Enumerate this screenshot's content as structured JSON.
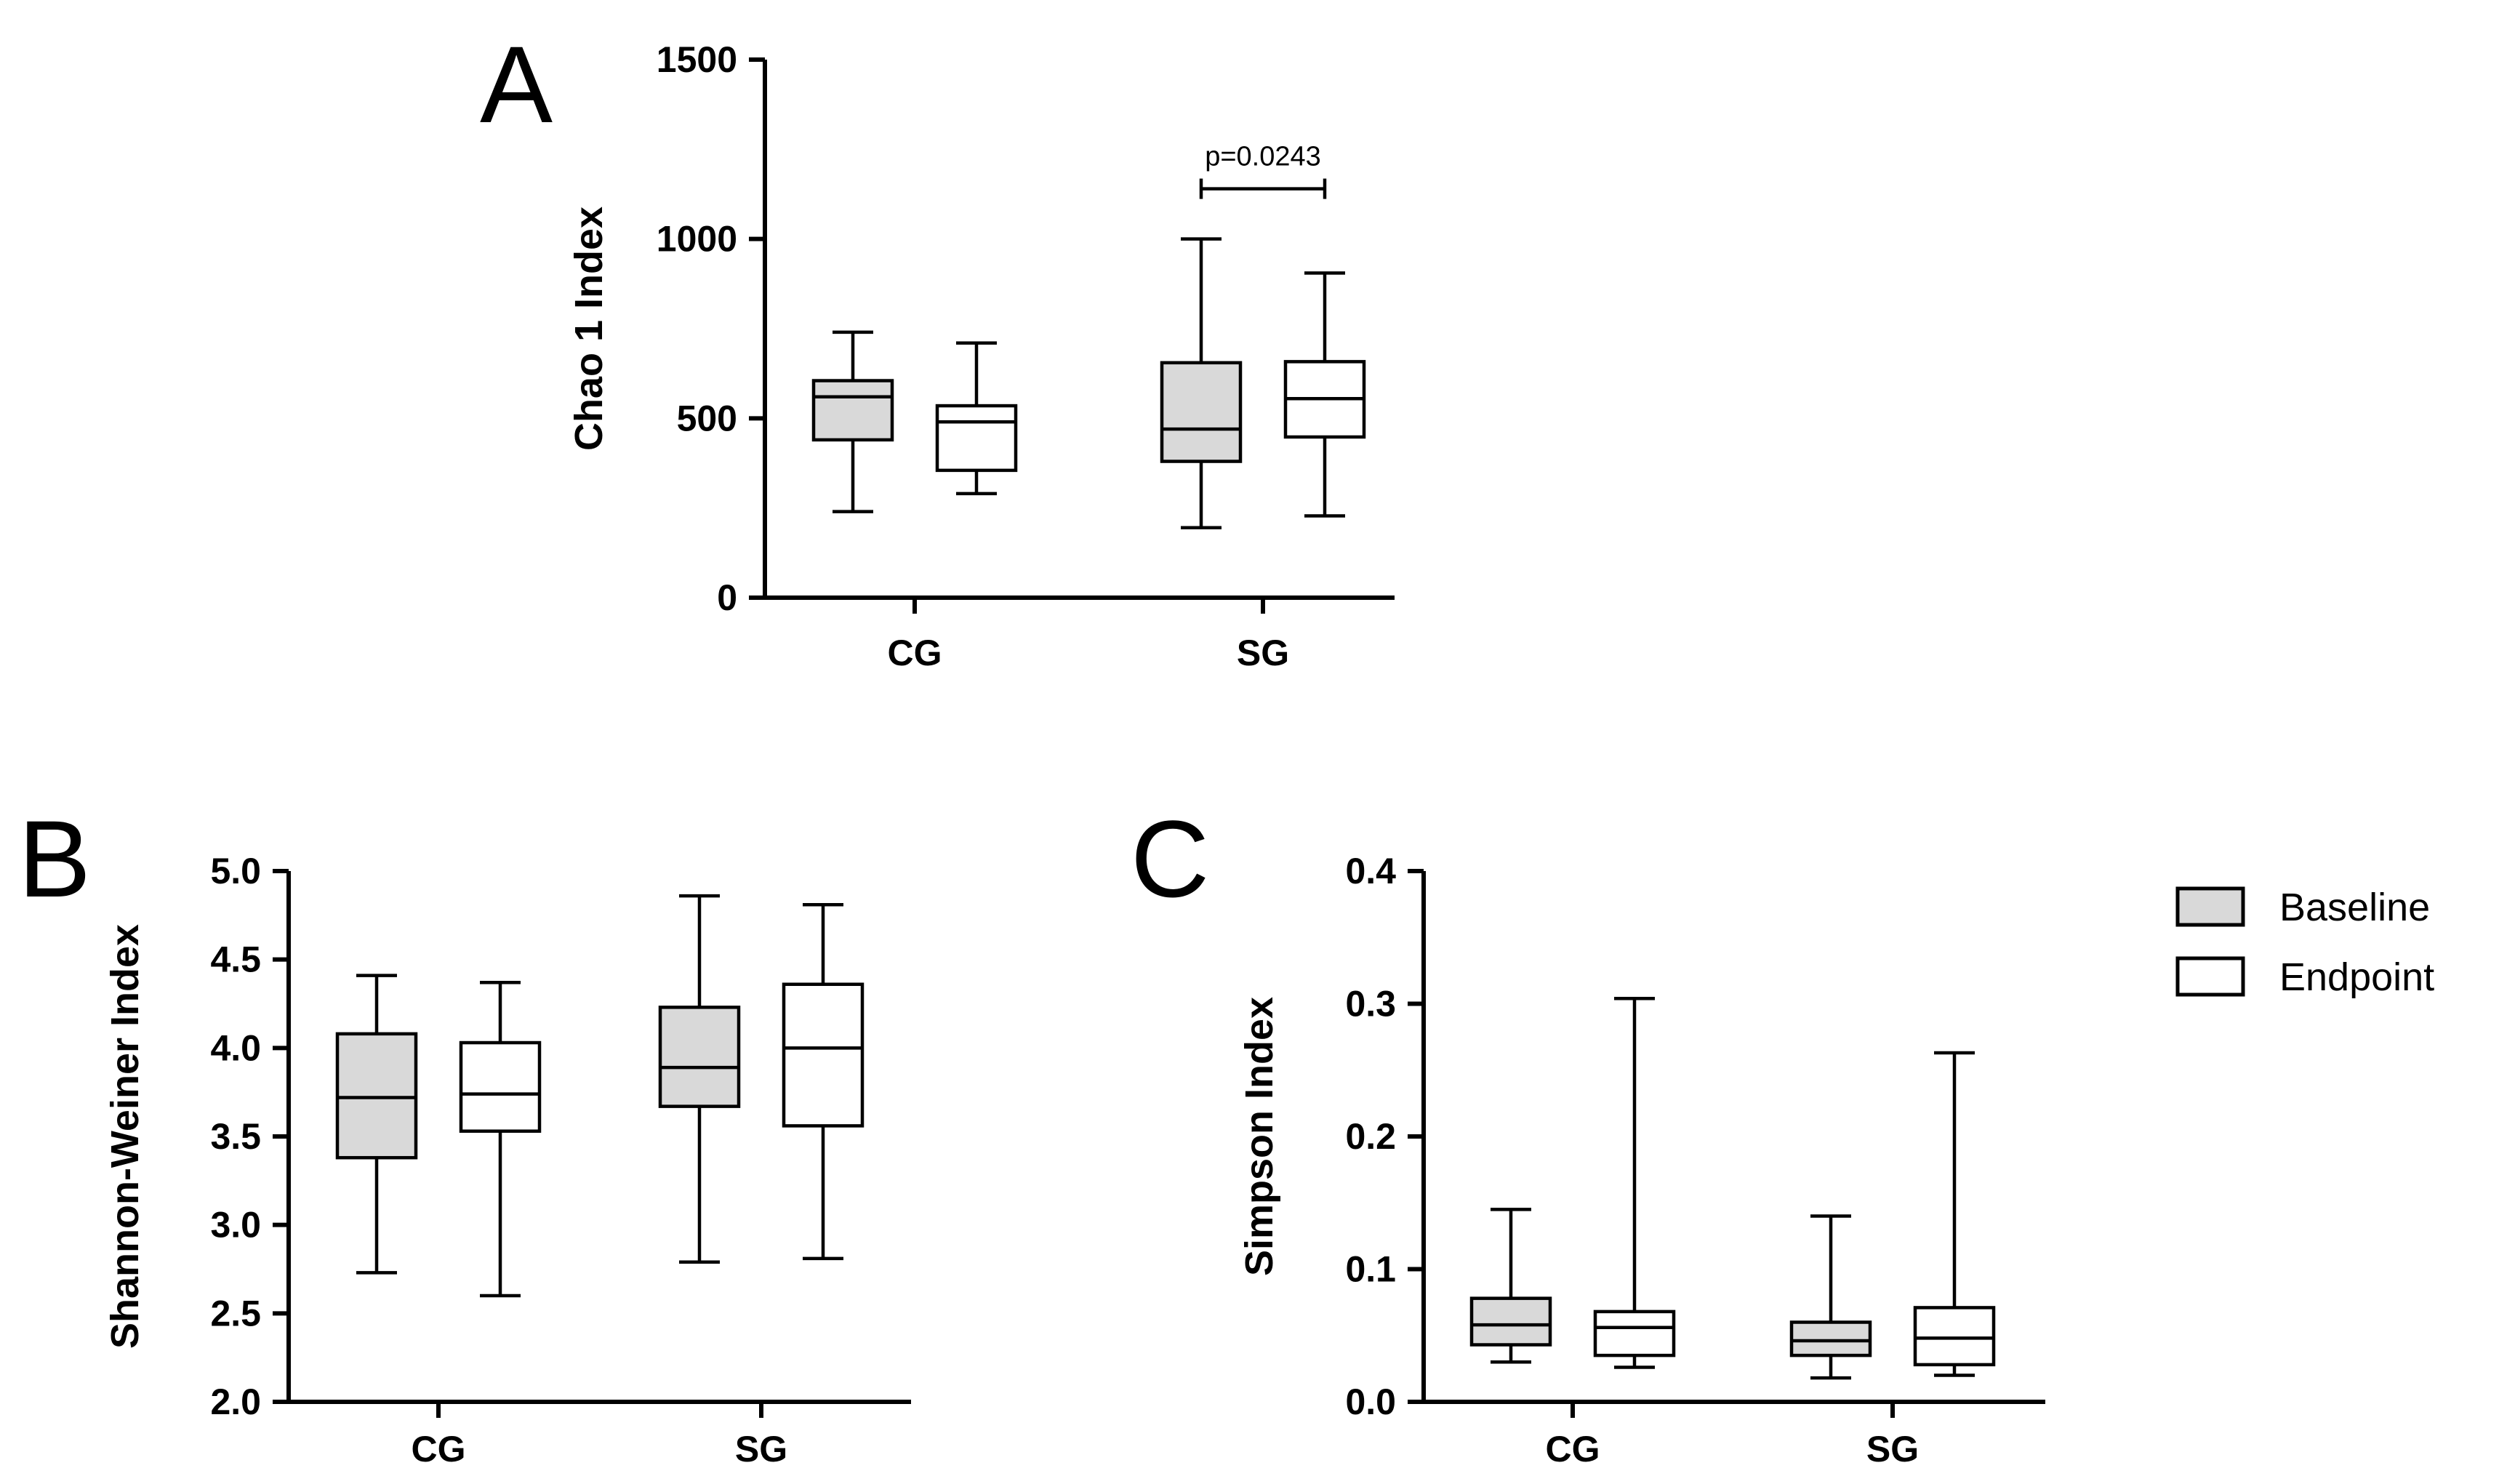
{
  "colors": {
    "baseline": "#d9d9d9",
    "endpoint": "#ffffff",
    "line": "#000000"
  },
  "legend": [
    {
      "label": "Baseline",
      "color": "#d9d9d9"
    },
    {
      "label": "Endpoint",
      "color": "#ffffff"
    }
  ],
  "chart_data": [
    {
      "panel": "A",
      "type": "box",
      "title": "",
      "ylabel": "Chao 1 Index",
      "ylim": [
        0,
        1500
      ],
      "yticks": [
        0,
        500,
        1000,
        1500
      ],
      "ytick_labels": [
        "0",
        "500",
        "1000",
        "1500"
      ],
      "categories": [
        "CG",
        "SG"
      ],
      "series": [
        {
          "name": "Baseline",
          "boxes": [
            {
              "min": 240,
              "q1": 440,
              "median": 560,
              "q3": 605,
              "max": 740
            },
            {
              "min": 195,
              "q1": 380,
              "median": 470,
              "q3": 655,
              "max": 1000
            }
          ]
        },
        {
          "name": "Endpoint",
          "boxes": [
            {
              "min": 290,
              "q1": 355,
              "median": 490,
              "q3": 535,
              "max": 710
            },
            {
              "min": 228,
              "q1": 448,
              "median": 555,
              "q3": 658,
              "max": 905
            }
          ]
        }
      ],
      "annotations": [
        {
          "text": "p=0.0243",
          "category": "SG",
          "y": 1140
        }
      ]
    },
    {
      "panel": "B",
      "type": "box",
      "title": "",
      "ylabel": "Shannon-Weiner Index",
      "ylim": [
        2.0,
        5.0
      ],
      "yticks": [
        2.0,
        2.5,
        3.0,
        3.5,
        4.0,
        4.5,
        5.0
      ],
      "ytick_labels": [
        "2.0",
        "2.5",
        "3.0",
        "3.5",
        "4.0",
        "4.5",
        "5.0"
      ],
      "categories": [
        "CG",
        "SG"
      ],
      "series": [
        {
          "name": "Baseline",
          "boxes": [
            {
              "min": 2.73,
              "q1": 3.38,
              "median": 3.72,
              "q3": 4.08,
              "max": 4.41
            },
            {
              "min": 2.79,
              "q1": 3.67,
              "median": 3.89,
              "q3": 4.23,
              "max": 4.86
            }
          ]
        },
        {
          "name": "Endpoint",
          "boxes": [
            {
              "min": 2.6,
              "q1": 3.53,
              "median": 3.74,
              "q3": 4.03,
              "max": 4.37
            },
            {
              "min": 2.81,
              "q1": 3.56,
              "median": 4.0,
              "q3": 4.36,
              "max": 4.81
            }
          ]
        }
      ],
      "annotations": []
    },
    {
      "panel": "C",
      "type": "box",
      "title": "",
      "ylabel": "Simpson Index",
      "ylim": [
        0.0,
        0.4
      ],
      "yticks": [
        0.0,
        0.1,
        0.2,
        0.3,
        0.4
      ],
      "ytick_labels": [
        "0.0",
        "0.1",
        "0.2",
        "0.3",
        "0.4"
      ],
      "categories": [
        "CG",
        "SG"
      ],
      "series": [
        {
          "name": "Baseline",
          "boxes": [
            {
              "min": 0.03,
              "q1": 0.043,
              "median": 0.058,
              "q3": 0.078,
              "max": 0.145
            },
            {
              "min": 0.018,
              "q1": 0.035,
              "median": 0.046,
              "q3": 0.06,
              "max": 0.14
            }
          ]
        },
        {
          "name": "Endpoint",
          "boxes": [
            {
              "min": 0.026,
              "q1": 0.035,
              "median": 0.056,
              "q3": 0.068,
              "max": 0.304
            },
            {
              "min": 0.02,
              "q1": 0.028,
              "median": 0.048,
              "q3": 0.071,
              "max": 0.263
            }
          ]
        }
      ],
      "annotations": []
    }
  ]
}
